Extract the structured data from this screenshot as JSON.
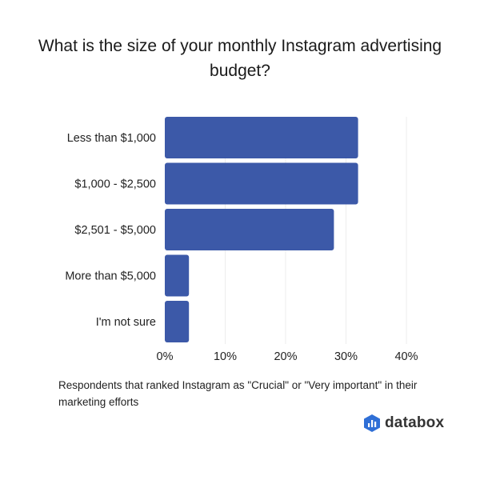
{
  "title": "What is the size of your monthly Instagram advertising budget?",
  "footnote": "Respondents that ranked Instagram as \"Crucial\" or \"Very important\" in their marketing efforts",
  "logo": {
    "text": "databox",
    "icon": "databox-logo-icon",
    "color": "#2f6fd6"
  },
  "chart_data": {
    "type": "bar",
    "orientation": "horizontal",
    "title": "What is the size of your monthly Instagram advertising budget?",
    "categories": [
      "Less than $1,000",
      "$1,000 - $2,500",
      "$2,501 - $5,000",
      "More than $5,000",
      "I'm not sure"
    ],
    "values": [
      32,
      32,
      28,
      4,
      4
    ],
    "unit": "%",
    "xlim": [
      0,
      40
    ],
    "xticks": [
      "0%",
      "10%",
      "20%",
      "30%",
      "40%"
    ],
    "grid": true,
    "bar_color": "#3c59a8",
    "grid_color": "#ececec"
  }
}
